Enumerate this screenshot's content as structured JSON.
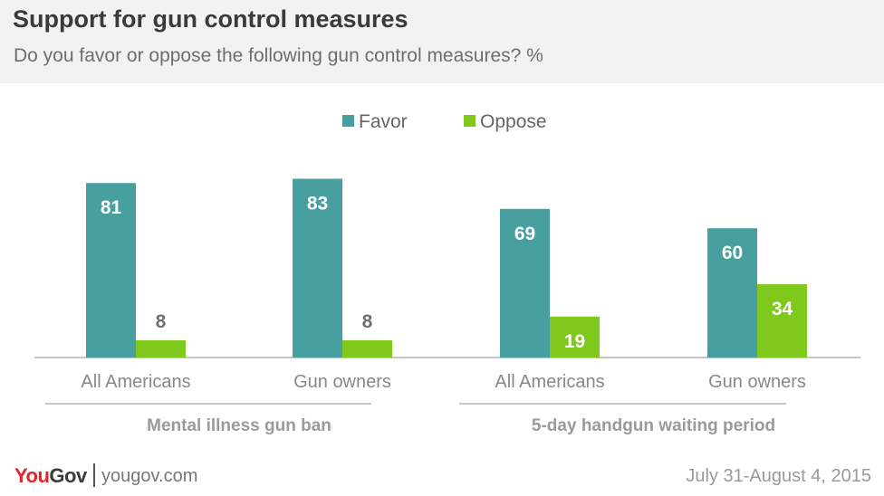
{
  "header": {
    "title": "Support for gun control measures",
    "subtitle": "Do you favor or oppose the following gun control measures? %"
  },
  "footer": {
    "logo_you": "You",
    "logo_gov": "Gov",
    "url": "yougov.com",
    "date": "July 31-August 4, 2015"
  },
  "chart_data": {
    "type": "bar",
    "categories": [
      "All Americans",
      "Gun owners",
      "All Americans",
      "Gun owners"
    ],
    "groups": [
      {
        "label": "Mental illness gun ban",
        "categories": [
          0,
          1
        ]
      },
      {
        "label": "5-day handgun waiting period",
        "categories": [
          2,
          3
        ]
      }
    ],
    "series": [
      {
        "name": "Favor",
        "color": "#479f9f",
        "values": [
          81,
          83,
          69,
          60
        ]
      },
      {
        "name": "Oppose",
        "color": "#7ec91c",
        "values": [
          8,
          8,
          19,
          34
        ]
      }
    ],
    "ylim": [
      0,
      90
    ],
    "legend": "top-center",
    "grid": false
  }
}
